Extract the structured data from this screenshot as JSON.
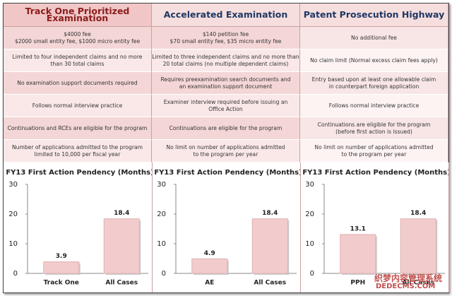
{
  "table": {
    "header": [
      "Track One Prioritized Examination",
      "Accelerated Examination",
      "Patent Prosecution Highway"
    ],
    "rows": [
      [
        "$4000 fee\n$2000 small entity fee, $1000 micro entity fee",
        "$140 petition fee\n$70 small entity fee, $35 micro entity fee",
        "No additional fee"
      ],
      [
        "Limited to four independent claims and no more\nthan 30 total claims",
        "Limited to three independent claims and no more than\n20 total claims (no multiple dependent claims)",
        "No claim limit (Normal excess claim fees apply)"
      ],
      [
        "No examination support documents required",
        "Requires preexamination search documents and\nan examination support document",
        "Entry based upon at least one allowable claim\nin counterpart foreign application"
      ],
      [
        "Follows normal interview practice",
        "Examiner interview required before issuing an\nOffice Action",
        "Follows normal interview practice"
      ],
      [
        "Continuations and RCEs are eligible for the program",
        "Continuations are eligible for the program",
        "Continuations are eligible for the program\n(before first action is issued)"
      ],
      [
        "Number of applications admitted to the program\nlimited to 10,000 per fiscal year",
        "No limit on number of applications admitted\nto the program per year",
        "No limit on number of applications admitted\nto the program per year"
      ]
    ]
  },
  "chart_data": [
    {
      "type": "bar",
      "title": "FY13 First Action Pendency (Months)",
      "categories": [
        "Track One",
        "All Cases"
      ],
      "values": [
        3.9,
        18.4
      ],
      "color": "#f2cccc",
      "ylim": [
        0,
        30
      ],
      "yticks": [
        0,
        10,
        20,
        30
      ]
    },
    {
      "type": "bar",
      "title": "FY13 First Action Pendency (Months)",
      "categories": [
        "AE",
        "All Cases"
      ],
      "values": [
        4.9,
        18.4
      ],
      "color": "#f2cccc",
      "ylim": [
        0,
        30
      ],
      "yticks": [
        0,
        10,
        20,
        30
      ]
    },
    {
      "type": "bar",
      "title": "FY13 First Action Pendency (Months)",
      "categories": [
        "PPH",
        "All Cases"
      ],
      "values": [
        13.1,
        18.4
      ],
      "color": "#f2cccc",
      "ylim": [
        0,
        30
      ],
      "yticks": [
        0,
        10,
        20,
        30
      ]
    }
  ],
  "watermark": [
    "织梦内容管理系统",
    "DEDECMS.COM"
  ]
}
